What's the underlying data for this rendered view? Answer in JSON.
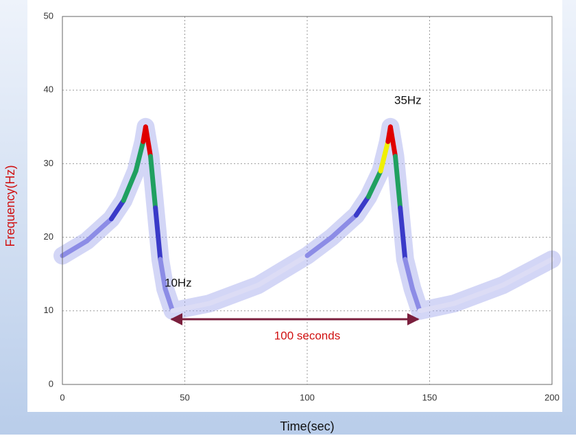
{
  "chart_data": {
    "type": "spectrogram",
    "xlabel": "Time(sec)",
    "ylabel": "Frequency(Hz)",
    "xlim": [
      0,
      200
    ],
    "ylim": [
      0,
      50
    ],
    "xticks": [
      0,
      50,
      100,
      150,
      200
    ],
    "yticks": [
      0,
      10,
      20,
      30,
      40,
      50
    ],
    "grid": true,
    "colormap": [
      "#dcdcf5",
      "#8c8ce6",
      "#3a3ac8",
      "#20a060",
      "#f0f000",
      "#e00000"
    ],
    "x": [
      0,
      10,
      20,
      25,
      30,
      33,
      34,
      36,
      38,
      40,
      42,
      45,
      60,
      80,
      100,
      110,
      120,
      125,
      130,
      133,
      134,
      136,
      138,
      140,
      143,
      146,
      160,
      180,
      200
    ],
    "series": [
      {
        "values": [
          17.5,
          19.5,
          22.5,
          25,
          29,
          33,
          35,
          31,
          24,
          17,
          13,
          10,
          11,
          13.5,
          17.5,
          20,
          23,
          25.5,
          29,
          33,
          35,
          31,
          24,
          17,
          13,
          10,
          11,
          13.5,
          17
        ],
        "color": "#9ea4ec"
      }
    ],
    "intensity": [
      0.2,
      0.25,
      0.4,
      0.5,
      0.65,
      0.9,
      1,
      0.6,
      0.35,
      0.25,
      0.2,
      0.15,
      0.12,
      0.15,
      0.25,
      0.3,
      0.45,
      0.55,
      0.7,
      0.9,
      1,
      0.6,
      0.35,
      0.25,
      0.2,
      0.15,
      0.12,
      0.15,
      0.2
    ],
    "annotations": [
      "35Hz",
      "10Hz",
      "100 seconds"
    ]
  }
}
